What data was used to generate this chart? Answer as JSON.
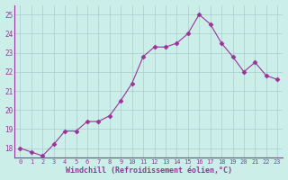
{
  "x": [
    0,
    1,
    2,
    3,
    4,
    5,
    6,
    7,
    8,
    9,
    10,
    11,
    12,
    13,
    14,
    15,
    16,
    17,
    18,
    19,
    20,
    21,
    22,
    23
  ],
  "y": [
    18.0,
    17.8,
    17.6,
    18.2,
    18.9,
    18.9,
    19.4,
    19.4,
    19.7,
    20.5,
    21.4,
    22.8,
    23.3,
    23.3,
    23.5,
    24.0,
    25.0,
    24.5,
    23.5,
    22.8,
    22.0,
    22.5,
    21.8,
    21.6
  ],
  "line_color": "#993399",
  "marker": "D",
  "markersize": 2.5,
  "linewidth": 0.8,
  "xlabel": "Windchill (Refroidissement éolien,°C)",
  "xlim": [
    -0.5,
    23.5
  ],
  "ylim": [
    17.5,
    25.5
  ],
  "yticks": [
    18,
    19,
    20,
    21,
    22,
    23,
    24,
    25
  ],
  "xtick_labels": [
    "0",
    "1",
    "2",
    "3",
    "4",
    "5",
    "6",
    "7",
    "8",
    "9",
    "10",
    "11",
    "12",
    "13",
    "14",
    "15",
    "16",
    "17",
    "18",
    "19",
    "20",
    "21",
    "22",
    "23"
  ],
  "bg_color": "#cceee8",
  "grid_color": "#aacccc",
  "spine_color": "#993399",
  "tick_color": "#993399",
  "label_color": "#993399",
  "font_family": "monospace"
}
